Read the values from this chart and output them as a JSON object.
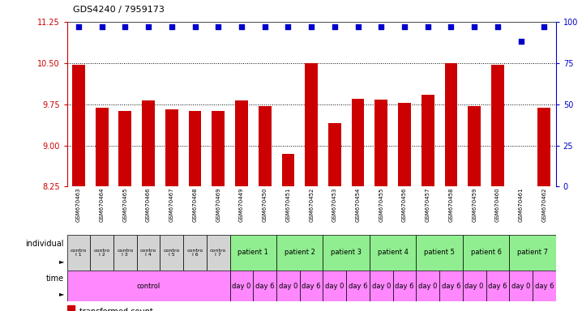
{
  "title": "GDS4240 / 7959173",
  "samples": [
    "GSM670463",
    "GSM670464",
    "GSM670465",
    "GSM670466",
    "GSM670467",
    "GSM670468",
    "GSM670469",
    "GSM670449",
    "GSM670450",
    "GSM670451",
    "GSM670452",
    "GSM670453",
    "GSM670454",
    "GSM670455",
    "GSM670456",
    "GSM670457",
    "GSM670458",
    "GSM670459",
    "GSM670460",
    "GSM670461",
    "GSM670462"
  ],
  "bar_values": [
    10.47,
    9.68,
    9.62,
    9.82,
    9.65,
    9.62,
    9.62,
    9.82,
    9.72,
    8.85,
    10.49,
    9.4,
    9.85,
    9.83,
    9.77,
    9.92,
    10.5,
    9.72,
    10.47,
    8.25,
    9.68
  ],
  "percentile_values": [
    97,
    97,
    97,
    97,
    97,
    97,
    97,
    97,
    97,
    97,
    97,
    97,
    97,
    97,
    97,
    97,
    97,
    97,
    97,
    88,
    97
  ],
  "ylim_left": [
    8.25,
    11.25
  ],
  "ylim_right": [
    0,
    100
  ],
  "yticks_left": [
    8.25,
    9.0,
    9.75,
    10.5,
    11.25
  ],
  "yticks_right": [
    0,
    25,
    50,
    75,
    100
  ],
  "bar_color": "#cc0000",
  "dot_color": "#0000cc",
  "bar_baseline": 8.25,
  "indiv_groups": [
    [
      0,
      1,
      "contro\nl 1",
      "#d3d3d3"
    ],
    [
      1,
      2,
      "contro\nl 2",
      "#d3d3d3"
    ],
    [
      2,
      3,
      "contro\nl 3",
      "#d3d3d3"
    ],
    [
      3,
      4,
      "contro\nl 4",
      "#d3d3d3"
    ],
    [
      4,
      5,
      "contro\nl 5",
      "#d3d3d3"
    ],
    [
      5,
      6,
      "contro\nl 6",
      "#d3d3d3"
    ],
    [
      6,
      7,
      "contro\nl 7",
      "#d3d3d3"
    ],
    [
      7,
      9,
      "patient 1",
      "#90ee90"
    ],
    [
      9,
      11,
      "patient 2",
      "#90ee90"
    ],
    [
      11,
      13,
      "patient 3",
      "#90ee90"
    ],
    [
      13,
      15,
      "patient 4",
      "#90ee90"
    ],
    [
      15,
      17,
      "patient 5",
      "#90ee90"
    ],
    [
      17,
      19,
      "patient 6",
      "#90ee90"
    ],
    [
      19,
      21,
      "patient 7",
      "#90ee90"
    ]
  ],
  "time_groups": [
    [
      0,
      7,
      "control",
      "#ff88ff"
    ],
    [
      7,
      8,
      "day 0",
      "#ff88ff"
    ],
    [
      8,
      9,
      "day 6",
      "#ff88ff"
    ],
    [
      9,
      10,
      "day 0",
      "#ff88ff"
    ],
    [
      10,
      11,
      "day 6",
      "#ff88ff"
    ],
    [
      11,
      12,
      "day 0",
      "#ff88ff"
    ],
    [
      12,
      13,
      "day 6",
      "#ff88ff"
    ],
    [
      13,
      14,
      "day 0",
      "#ff88ff"
    ],
    [
      14,
      15,
      "day 6",
      "#ff88ff"
    ],
    [
      15,
      16,
      "day 0",
      "#ff88ff"
    ],
    [
      16,
      17,
      "day 6",
      "#ff88ff"
    ],
    [
      17,
      18,
      "day 0",
      "#ff88ff"
    ],
    [
      18,
      19,
      "day 6",
      "#ff88ff"
    ],
    [
      19,
      20,
      "day 0",
      "#ff88ff"
    ],
    [
      20,
      21,
      "day 6",
      "#ff88ff"
    ]
  ],
  "num_bars": 21,
  "xticklabel_bg": "#d3d3d3"
}
